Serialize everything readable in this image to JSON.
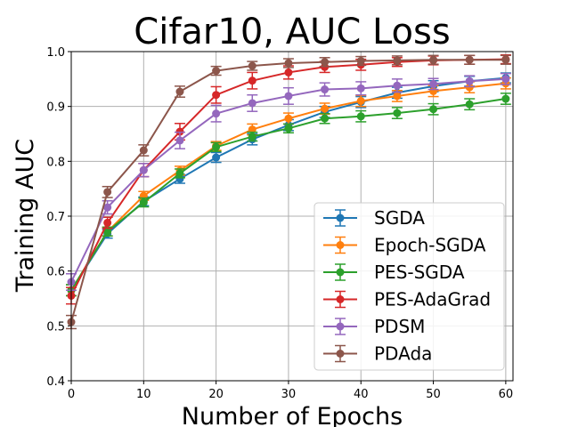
{
  "chart_data": {
    "type": "line",
    "title": "Cifar10, AUC Loss",
    "xlabel": "Number of Epochs",
    "ylabel": "Training AUC",
    "xlim": [
      0,
      61
    ],
    "ylim": [
      0.4,
      1.0
    ],
    "xticks": [
      "0",
      "10",
      "20",
      "30",
      "40",
      "50",
      "60"
    ],
    "yticks": [
      "0.4",
      "0.5",
      "0.6",
      "0.7",
      "0.8",
      "0.9",
      "1.0"
    ],
    "grid": true,
    "legend_position": "lower-right",
    "x": [
      0,
      5,
      10,
      15,
      20,
      25,
      30,
      35,
      40,
      45,
      50,
      55,
      60
    ],
    "series": [
      {
        "name": "SGDA",
        "color": "#1f77b4",
        "values": [
          0.565,
          0.668,
          0.727,
          0.768,
          0.807,
          0.84,
          0.866,
          0.89,
          0.908,
          0.925,
          0.937,
          0.946,
          0.952
        ],
        "errors": [
          0.01,
          0.008,
          0.008,
          0.008,
          0.009,
          0.01,
          0.01,
          0.01,
          0.01,
          0.01,
          0.01,
          0.009,
          0.009
        ]
      },
      {
        "name": "Epoch-SGDA",
        "color": "#ff7f0e",
        "values": [
          0.565,
          0.672,
          0.737,
          0.783,
          0.828,
          0.858,
          0.878,
          0.896,
          0.91,
          0.919,
          0.928,
          0.935,
          0.942
        ],
        "errors": [
          0.01,
          0.008,
          0.008,
          0.008,
          0.008,
          0.01,
          0.01,
          0.01,
          0.01,
          0.01,
          0.01,
          0.01,
          0.01
        ]
      },
      {
        "name": "PES-SGDA",
        "color": "#2ca02c",
        "values": [
          0.565,
          0.672,
          0.725,
          0.778,
          0.826,
          0.845,
          0.86,
          0.878,
          0.882,
          0.888,
          0.895,
          0.904,
          0.914
        ],
        "errors": [
          0.01,
          0.008,
          0.008,
          0.008,
          0.008,
          0.008,
          0.008,
          0.009,
          0.01,
          0.01,
          0.01,
          0.01,
          0.01
        ]
      },
      {
        "name": "PES-AdaGrad",
        "color": "#d62728",
        "values": [
          0.555,
          0.688,
          0.784,
          0.854,
          0.921,
          0.947,
          0.962,
          0.972,
          0.976,
          0.981,
          0.984,
          0.985,
          0.986
        ],
        "errors": [
          0.015,
          0.01,
          0.012,
          0.015,
          0.015,
          0.015,
          0.012,
          0.01,
          0.01,
          0.008,
          0.008,
          0.008,
          0.008
        ]
      },
      {
        "name": "PDSM",
        "color": "#9467bd",
        "values": [
          0.58,
          0.716,
          0.784,
          0.838,
          0.887,
          0.906,
          0.919,
          0.931,
          0.933,
          0.938,
          0.941,
          0.946,
          0.95
        ],
        "errors": [
          0.015,
          0.012,
          0.012,
          0.015,
          0.015,
          0.015,
          0.015,
          0.012,
          0.012,
          0.012,
          0.01,
          0.01,
          0.01
        ]
      },
      {
        "name": "PDAda",
        "color": "#8c564b",
        "values": [
          0.507,
          0.744,
          0.82,
          0.927,
          0.965,
          0.974,
          0.979,
          0.981,
          0.983,
          0.984,
          0.985,
          0.985,
          0.985
        ],
        "errors": [
          0.012,
          0.01,
          0.01,
          0.01,
          0.008,
          0.008,
          0.008,
          0.008,
          0.008,
          0.008,
          0.008,
          0.008,
          0.008
        ]
      }
    ]
  }
}
